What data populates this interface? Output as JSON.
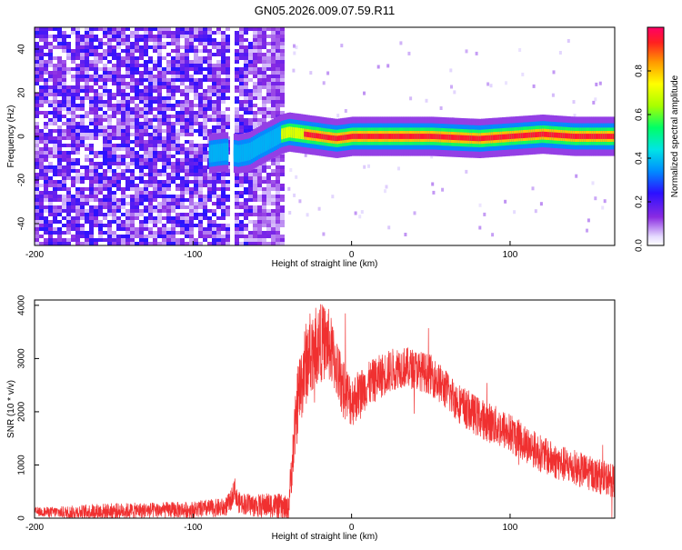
{
  "title": "GN05.2026.009.07.59.R11",
  "chart_data": [
    {
      "type": "heatmap",
      "title": "GN05.2026.009.07.59.R11",
      "xlabel": "Height of straight line (km)",
      "ylabel": "Frequency (Hz)",
      "xlim": [
        -200,
        166
      ],
      "ylim": [
        -50,
        50
      ],
      "x_ticks": [
        -200,
        -100,
        0,
        100
      ],
      "y_ticks": [
        -40,
        -20,
        0,
        20,
        40
      ],
      "grid": false,
      "colorbar": {
        "label": "Normalized spectral amplitude",
        "range": [
          0.0,
          1.0
        ],
        "ticks": [
          "0.0",
          "0.2",
          "0.4",
          "0.6",
          "0.8"
        ],
        "colormap": "rainbow (violet to red)"
      },
      "noise_region_x": [
        -200,
        -43
      ],
      "gap_x": [
        -78,
        -75
      ],
      "signal_track": {
        "x": [
          -90,
          -80,
          -72,
          -65,
          -58,
          -50,
          -45,
          -40,
          -30,
          -20,
          -10,
          0,
          20,
          50,
          80,
          100,
          120,
          140,
          166
        ],
        "frequency": [
          -8,
          -7,
          -8,
          -7,
          -4,
          -1,
          1,
          2,
          1,
          0,
          -1,
          0,
          0,
          0,
          -1,
          0,
          1,
          0,
          0
        ]
      }
    },
    {
      "type": "line",
      "xlabel": "Height of straight line (km)",
      "ylabel": "SNR (10 * v/v)",
      "xlim": [
        -200,
        166
      ],
      "ylim": [
        0,
        4100
      ],
      "x_ticks": [
        -200,
        -100,
        0,
        100
      ],
      "y_ticks": [
        0,
        1000,
        2000,
        3000,
        4000
      ],
      "grid": false,
      "color": "#f03030",
      "x": [
        -200,
        -180,
        -160,
        -140,
        -120,
        -100,
        -80,
        -76,
        -74,
        -72,
        -60,
        -50,
        -44,
        -40,
        -37,
        -34,
        -30,
        -25,
        -20,
        -15,
        -10,
        -5,
        0,
        10,
        20,
        30,
        40,
        50,
        60,
        70,
        80,
        90,
        100,
        110,
        120,
        130,
        140,
        150,
        160,
        166
      ],
      "y": [
        120,
        110,
        130,
        140,
        150,
        160,
        200,
        330,
        600,
        300,
        230,
        250,
        200,
        150,
        1200,
        2200,
        2800,
        3200,
        3300,
        3300,
        2900,
        2400,
        2200,
        2500,
        2700,
        2850,
        2800,
        2700,
        2400,
        2100,
        1900,
        1750,
        1600,
        1400,
        1200,
        1050,
        950,
        850,
        750,
        700
      ],
      "noise_band": [
        80,
        120,
        150,
        150,
        150,
        160,
        180,
        200,
        220,
        200,
        220,
        240,
        250,
        250,
        500,
        700,
        800,
        800,
        750,
        700,
        600,
        550,
        500,
        420,
        420,
        400,
        380,
        380,
        380,
        380,
        380,
        380,
        380,
        360,
        350,
        340,
        340,
        330,
        330,
        320
      ]
    }
  ]
}
